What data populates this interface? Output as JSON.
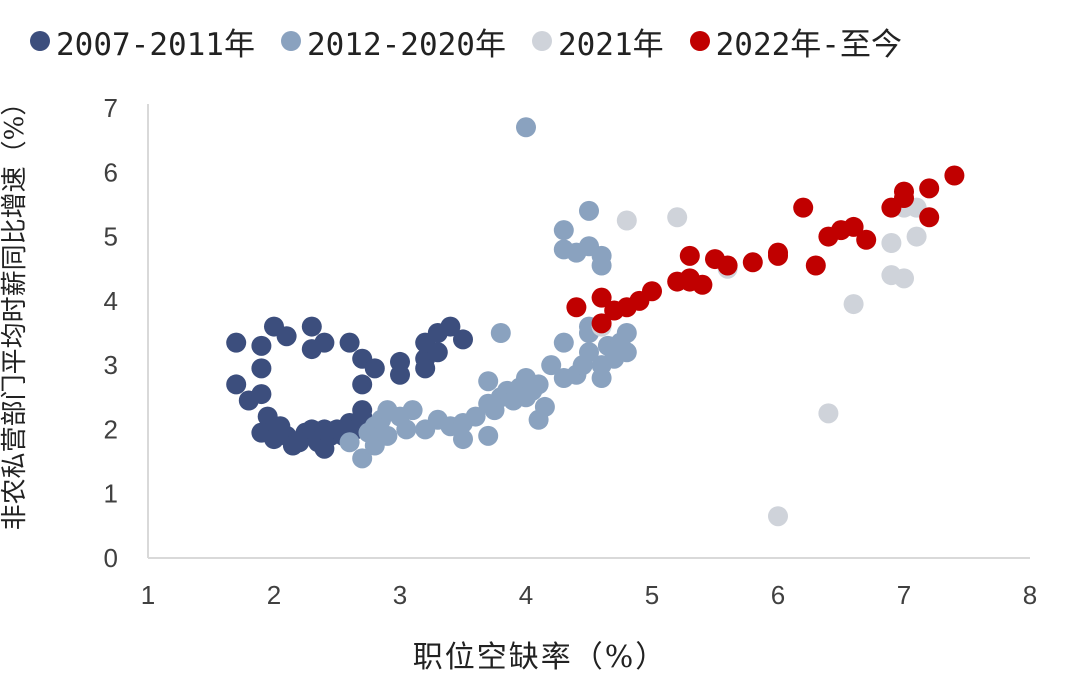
{
  "chart_data": {
    "type": "scatter",
    "title": "",
    "xlabel": "职位空缺率（%）",
    "ylabel": "非农私营部门平均时薪同比增速（%）",
    "xlim": [
      1,
      8
    ],
    "ylim": [
      0,
      7
    ],
    "x_ticks": [
      "1",
      "2",
      "3",
      "4",
      "5",
      "6",
      "7",
      "8"
    ],
    "y_ticks": [
      "0",
      "1",
      "2",
      "3",
      "4",
      "5",
      "6",
      "7"
    ],
    "grid": false,
    "legend_position": "top",
    "series": [
      {
        "name": "2007-2011年",
        "color": "#3c4e7d",
        "points": [
          [
            1.7,
            3.35
          ],
          [
            1.7,
            2.7
          ],
          [
            1.8,
            2.45
          ],
          [
            1.9,
            2.55
          ],
          [
            1.9,
            2.95
          ],
          [
            1.9,
            3.3
          ],
          [
            1.95,
            2.2
          ],
          [
            2.0,
            3.6
          ],
          [
            1.9,
            1.95
          ],
          [
            2.0,
            2.0
          ],
          [
            2.0,
            1.85
          ],
          [
            2.05,
            2.05
          ],
          [
            2.1,
            1.9
          ],
          [
            2.1,
            3.45
          ],
          [
            2.15,
            1.75
          ],
          [
            2.2,
            1.8
          ],
          [
            2.25,
            1.95
          ],
          [
            2.3,
            2.0
          ],
          [
            2.3,
            3.25
          ],
          [
            2.3,
            3.6
          ],
          [
            2.35,
            1.8
          ],
          [
            2.4,
            2.0
          ],
          [
            2.4,
            1.7
          ],
          [
            2.4,
            3.35
          ],
          [
            2.45,
            1.9
          ],
          [
            2.5,
            2.0
          ],
          [
            2.55,
            1.9
          ],
          [
            2.6,
            2.1
          ],
          [
            2.65,
            2.0
          ],
          [
            2.6,
            3.35
          ],
          [
            2.7,
            3.1
          ],
          [
            2.7,
            2.3
          ],
          [
            2.7,
            2.2
          ],
          [
            2.7,
            2.7
          ],
          [
            2.8,
            2.95
          ],
          [
            3.0,
            2.85
          ],
          [
            3.0,
            3.05
          ],
          [
            3.2,
            3.1
          ],
          [
            3.2,
            2.95
          ],
          [
            3.2,
            3.35
          ],
          [
            3.3,
            3.5
          ],
          [
            3.3,
            3.2
          ],
          [
            3.4,
            3.6
          ],
          [
            3.5,
            3.4
          ]
        ]
      },
      {
        "name": "2012-2020年",
        "color": "#8aa2bf",
        "points": [
          [
            2.6,
            1.8
          ],
          [
            2.7,
            1.55
          ],
          [
            2.75,
            1.95
          ],
          [
            2.8,
            2.05
          ],
          [
            2.8,
            1.75
          ],
          [
            2.85,
            2.15
          ],
          [
            2.9,
            2.3
          ],
          [
            2.9,
            1.9
          ],
          [
            3.0,
            2.2
          ],
          [
            3.05,
            2.0
          ],
          [
            3.1,
            2.3
          ],
          [
            3.2,
            2.0
          ],
          [
            3.3,
            2.15
          ],
          [
            3.4,
            2.05
          ],
          [
            3.5,
            1.85
          ],
          [
            3.5,
            2.1
          ],
          [
            3.6,
            2.2
          ],
          [
            3.7,
            2.4
          ],
          [
            3.7,
            2.75
          ],
          [
            3.7,
            1.9
          ],
          [
            3.75,
            2.3
          ],
          [
            3.8,
            2.5
          ],
          [
            3.8,
            3.5
          ],
          [
            3.85,
            2.6
          ],
          [
            3.9,
            2.45
          ],
          [
            3.95,
            2.65
          ],
          [
            4.0,
            2.8
          ],
          [
            4.0,
            2.5
          ],
          [
            4.0,
            6.7
          ],
          [
            4.05,
            2.6
          ],
          [
            4.1,
            2.7
          ],
          [
            4.1,
            2.15
          ],
          [
            4.15,
            2.35
          ],
          [
            4.2,
            3.0
          ],
          [
            4.3,
            2.8
          ],
          [
            4.3,
            3.35
          ],
          [
            4.3,
            4.8
          ],
          [
            4.3,
            5.1
          ],
          [
            4.4,
            2.85
          ],
          [
            4.4,
            4.75
          ],
          [
            4.45,
            3.0
          ],
          [
            4.5,
            3.2
          ],
          [
            4.5,
            3.5
          ],
          [
            4.5,
            3.6
          ],
          [
            4.5,
            4.85
          ],
          [
            4.5,
            5.4
          ],
          [
            4.6,
            2.8
          ],
          [
            4.6,
            3.0
          ],
          [
            4.6,
            4.55
          ],
          [
            4.6,
            4.7
          ],
          [
            4.65,
            3.3
          ],
          [
            4.7,
            3.1
          ],
          [
            4.75,
            3.35
          ],
          [
            4.8,
            3.2
          ],
          [
            4.8,
            3.5
          ]
        ]
      },
      {
        "name": "2021年",
        "color": "#cfd3da",
        "points": [
          [
            4.6,
            3.6
          ],
          [
            4.8,
            5.25
          ],
          [
            5.2,
            5.3
          ],
          [
            5.6,
            4.5
          ],
          [
            6.0,
            0.65
          ],
          [
            6.4,
            2.25
          ],
          [
            6.6,
            3.95
          ],
          [
            6.9,
            4.4
          ],
          [
            6.9,
            4.9
          ],
          [
            7.0,
            4.35
          ],
          [
            7.0,
            5.45
          ],
          [
            7.1,
            5.45
          ],
          [
            7.1,
            5.0
          ]
        ]
      },
      {
        "name": "2022年-至今",
        "color": "#c00000",
        "points": [
          [
            4.4,
            3.9
          ],
          [
            4.6,
            3.65
          ],
          [
            4.6,
            4.05
          ],
          [
            4.7,
            3.85
          ],
          [
            4.8,
            3.9
          ],
          [
            4.9,
            4.0
          ],
          [
            5.0,
            4.15
          ],
          [
            5.2,
            4.3
          ],
          [
            5.3,
            4.3
          ],
          [
            5.3,
            4.35
          ],
          [
            5.3,
            4.7
          ],
          [
            5.4,
            4.25
          ],
          [
            5.5,
            4.65
          ],
          [
            5.6,
            4.55
          ],
          [
            5.8,
            4.6
          ],
          [
            6.0,
            4.7
          ],
          [
            6.0,
            4.75
          ],
          [
            6.2,
            5.45
          ],
          [
            6.3,
            4.55
          ],
          [
            6.4,
            5.0
          ],
          [
            6.5,
            5.1
          ],
          [
            6.6,
            5.15
          ],
          [
            6.7,
            4.95
          ],
          [
            6.9,
            5.45
          ],
          [
            7.0,
            5.6
          ],
          [
            7.0,
            5.7
          ],
          [
            7.2,
            5.75
          ],
          [
            7.2,
            5.3
          ],
          [
            7.4,
            5.95
          ]
        ]
      }
    ]
  }
}
